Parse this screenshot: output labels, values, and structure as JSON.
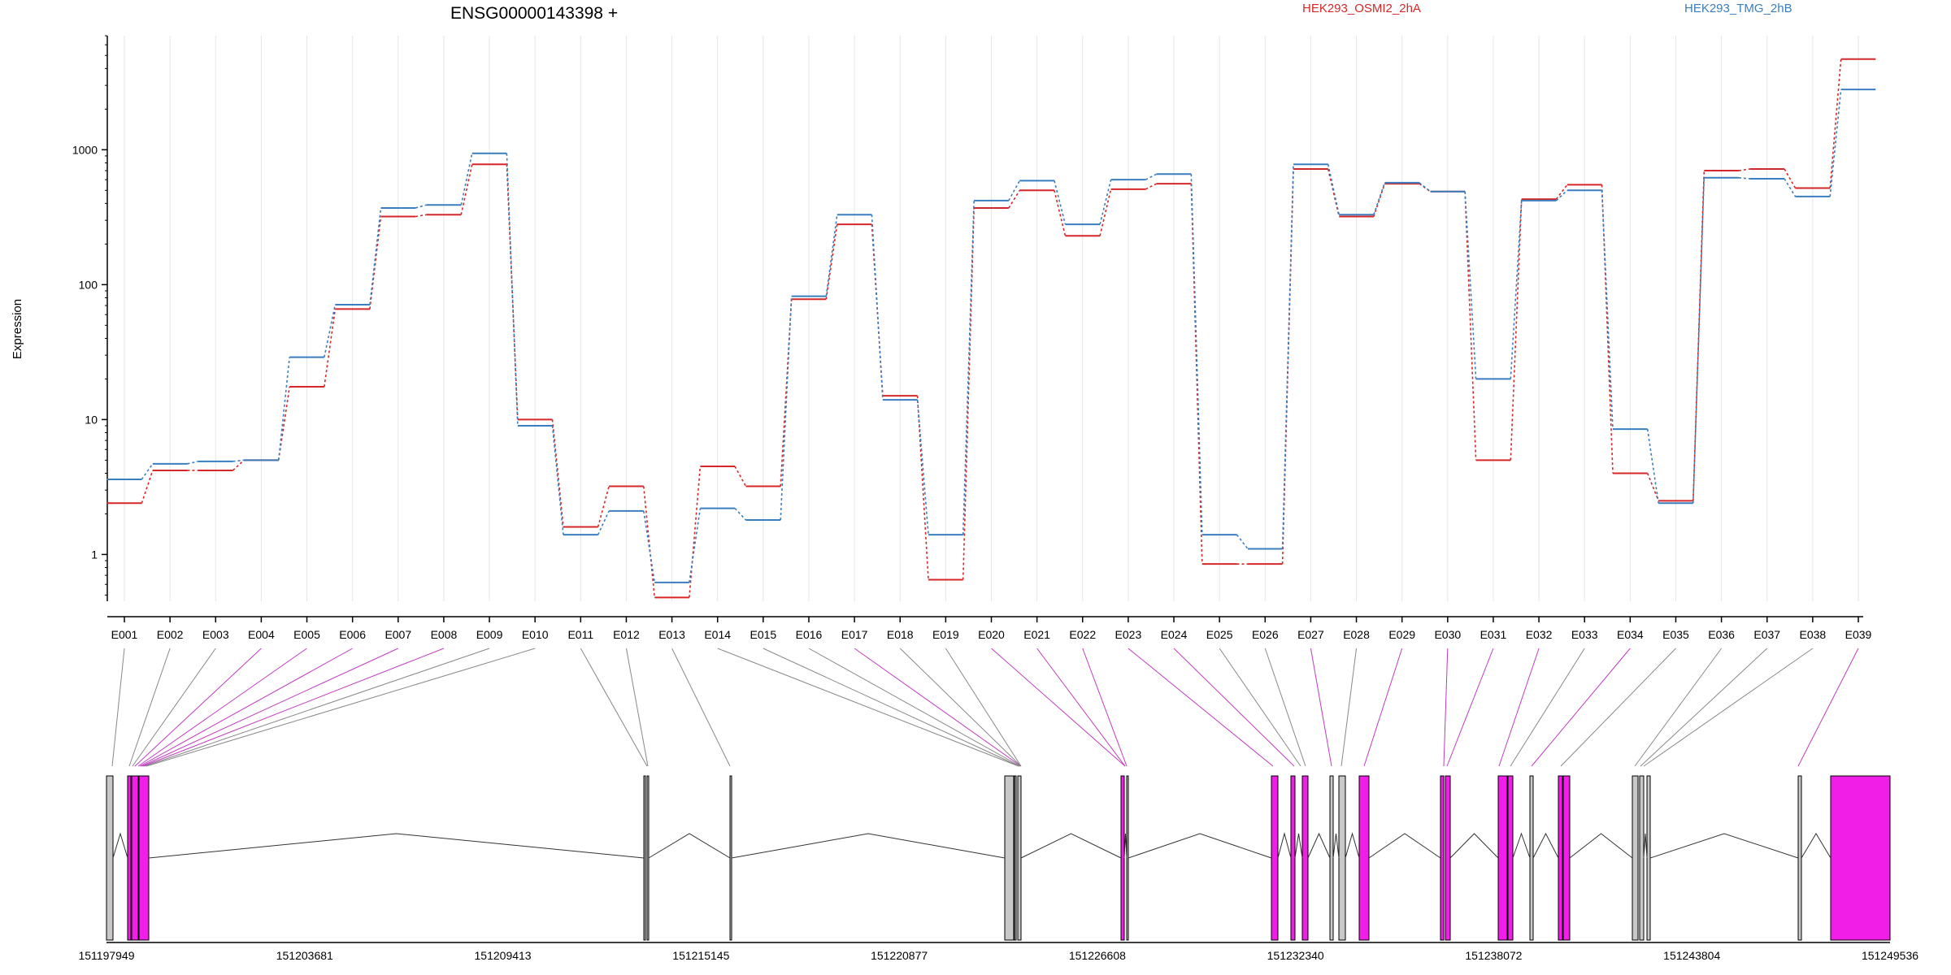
{
  "chart_data": {
    "type": "line",
    "title": "ENSG00000143398 +",
    "ylabel": "Expression",
    "y_scale": "log",
    "ylim": [
      0.45,
      7000
    ],
    "y_ticks": [
      {
        "value": 1,
        "label": "1"
      },
      {
        "value": 10,
        "label": "10"
      },
      {
        "value": 100,
        "label": "100"
      },
      {
        "value": 1000,
        "label": "1000"
      }
    ],
    "categories": [
      "E001",
      "E002",
      "E003",
      "E004",
      "E005",
      "E006",
      "E007",
      "E008",
      "E009",
      "E010",
      "E011",
      "E012",
      "E013",
      "E014",
      "E015",
      "E016",
      "E017",
      "E018",
      "E019",
      "E020",
      "E021",
      "E022",
      "E023",
      "E024",
      "E025",
      "E026",
      "E027",
      "E028",
      "E029",
      "E030",
      "E031",
      "E032",
      "E033",
      "E034",
      "E035",
      "E036",
      "E037",
      "E038",
      "E039"
    ],
    "series": [
      {
        "name": "HEK293_OSMI2_2hA",
        "color": "#d62728",
        "values": [
          2.4,
          4.2,
          4.2,
          5.0,
          17.5,
          66,
          320,
          330,
          780,
          10,
          1.6,
          3.2,
          0.48,
          4.5,
          3.2,
          78,
          280,
          15,
          0.65,
          370,
          500,
          230,
          510,
          560,
          0.85,
          0.85,
          720,
          320,
          560,
          490,
          5.0,
          430,
          550,
          4.0,
          2.5,
          700,
          720,
          520,
          4700
        ]
      },
      {
        "name": "HEK293_TMG_2hB",
        "color": "#3a7ebf",
        "values": [
          3.6,
          4.7,
          4.9,
          5.0,
          29,
          71,
          370,
          390,
          940,
          9.0,
          1.4,
          2.1,
          0.62,
          2.2,
          1.8,
          82,
          330,
          14,
          1.4,
          420,
          590,
          280,
          600,
          660,
          1.4,
          1.1,
          780,
          330,
          570,
          490,
          20,
          420,
          500,
          8.5,
          2.4,
          620,
          610,
          450,
          2800
        ]
      }
    ],
    "gene_model": {
      "coordinate_labels": [
        "151197949",
        "151203681",
        "151209413",
        "151215145",
        "151220877",
        "151226608",
        "151232340",
        "151238072",
        "151243804",
        "151249536"
      ],
      "exon_fill_colors": {
        "normal": "#c8c8c8",
        "highlighted": "#f01ee6"
      }
    }
  }
}
